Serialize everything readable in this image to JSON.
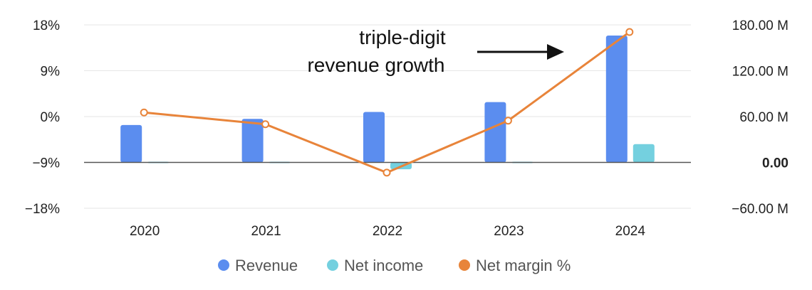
{
  "chart_data": {
    "type": "bar",
    "categories": [
      "2020",
      "2021",
      "2022",
      "2023",
      "2024"
    ],
    "series": [
      {
        "name": "Revenue",
        "kind": "bar",
        "axis": "right",
        "color": "#5b8def",
        "values": [
          49,
          57,
          66,
          79,
          166
        ]
      },
      {
        "name": "Net income",
        "kind": "bar",
        "axis": "right",
        "color": "#74d0df",
        "values": [
          0.5,
          -0.5,
          -9,
          0.5,
          24
        ]
      },
      {
        "name": "Net margin %",
        "kind": "line",
        "axis": "left",
        "color": "#e8843a",
        "values": [
          0.8,
          -1.5,
          -11,
          -0.8,
          16.6
        ]
      }
    ],
    "y_left": {
      "ylim": [
        -18,
        18
      ],
      "ticks": [
        18,
        9,
        0,
        -9,
        -18
      ],
      "tick_labels": [
        "18%",
        "9%",
        "0%",
        "−9%",
        "−18%"
      ]
    },
    "y_right": {
      "ylim": [
        -60,
        180
      ],
      "ticks": [
        180,
        120,
        60,
        0,
        -60
      ],
      "tick_labels": [
        "180.00 M",
        "120.00 M",
        "60.00 M",
        "0.00",
        "−60.00 M"
      ],
      "bold_tick": "0.00"
    },
    "annotation": {
      "lines": [
        "triple-digit",
        "revenue growth"
      ]
    },
    "legend": {
      "position": "bottom-center"
    },
    "grid": true
  }
}
